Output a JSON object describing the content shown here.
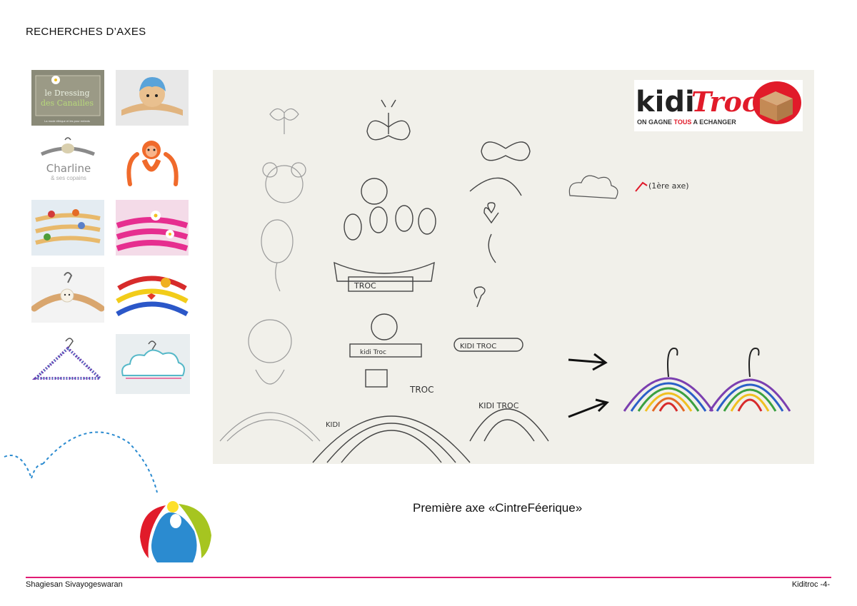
{
  "page": {
    "title": "RECHERCHES D’AXES",
    "caption": "Première axe «CintreFéerique»",
    "footer_left": "Shagiesan Sivayogeswaran",
    "footer_right": "Kiditroc -4-"
  },
  "thumbnails": [
    {
      "name": "le-dressing-des-canailles",
      "text_line1": "le Dressing",
      "text_line2": "des Canailles",
      "text_line3": "La mode éthique et les pour enfants"
    },
    {
      "name": "child-head-hanger"
    },
    {
      "name": "charline-logo",
      "text_line1": "Charline",
      "text_line2": "& ses copains"
    },
    {
      "name": "monkey-hanger"
    },
    {
      "name": "wooden-animal-hangers"
    },
    {
      "name": "pink-flower-hangers"
    },
    {
      "name": "sheep-hanger"
    },
    {
      "name": "colorful-hangers"
    },
    {
      "name": "beaded-hanger"
    },
    {
      "name": "cloud-hanger"
    }
  ],
  "sketch": {
    "logo": {
      "kidi": "kidi",
      "troc": "Troc",
      "tagline_a": "ON GAGNE ",
      "tagline_b": "TOUS",
      "tagline_c": " A ECHANGER"
    },
    "labels": {
      "premiere_axe": "(1ère axe)",
      "kidi_a": "KiDi",
      "troc_a": "TROC",
      "troc_b": "TROC",
      "kidi_troc_hanger": "KIDI TROC",
      "kidi_troc_monkey": "kidi Troc",
      "kidi_arc": "KIDI",
      "troc_arc": "TROC",
      "kidi_troc_arc": "KIDI TROC"
    }
  },
  "colors": {
    "accent": "#e11b73",
    "sketch_bg": "#f1f0ea",
    "deco_blue": "#2b8bd0"
  }
}
